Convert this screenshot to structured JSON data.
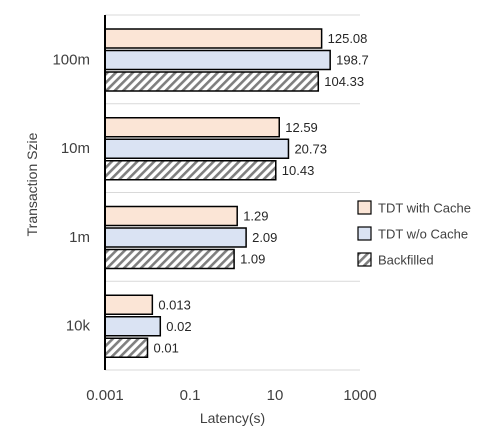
{
  "chart_data": {
    "type": "bar",
    "orientation": "horizontal",
    "xlabel": "Latency(s)",
    "ylabel": "Transaction Szie",
    "xscale": "log",
    "xlim": [
      0.001,
      1000
    ],
    "xticks": [
      0.001,
      0.1,
      10,
      1000
    ],
    "xtick_labels": [
      "0.001",
      "0.1",
      "10",
      "1000"
    ],
    "categories": [
      "100m",
      "10m",
      "1m",
      "10k"
    ],
    "series": [
      {
        "name": "TDT with Cache",
        "values": [
          125.08,
          12.59,
          1.29,
          0.013
        ],
        "labels": [
          "125.08",
          "12.59",
          "1.29",
          "0.013"
        ],
        "fill": "#fbe5d6",
        "pattern": "solid"
      },
      {
        "name": "TDT w/o Cache",
        "values": [
          198.7,
          20.73,
          2.09,
          0.02
        ],
        "labels": [
          "198.7",
          "20.73",
          "2.09",
          "0.02"
        ],
        "fill": "#dae3f3",
        "pattern": "solid"
      },
      {
        "name": "Backfilled",
        "values": [
          104.33,
          10.43,
          1.09,
          0.01
        ],
        "labels": [
          "104.33",
          "10.43",
          "1.09",
          "0.01"
        ],
        "fill": "#7f7f7f",
        "pattern": "diagonal-hatch"
      }
    ],
    "grid": "horizontal lines between categories",
    "legend_position": "right"
  }
}
